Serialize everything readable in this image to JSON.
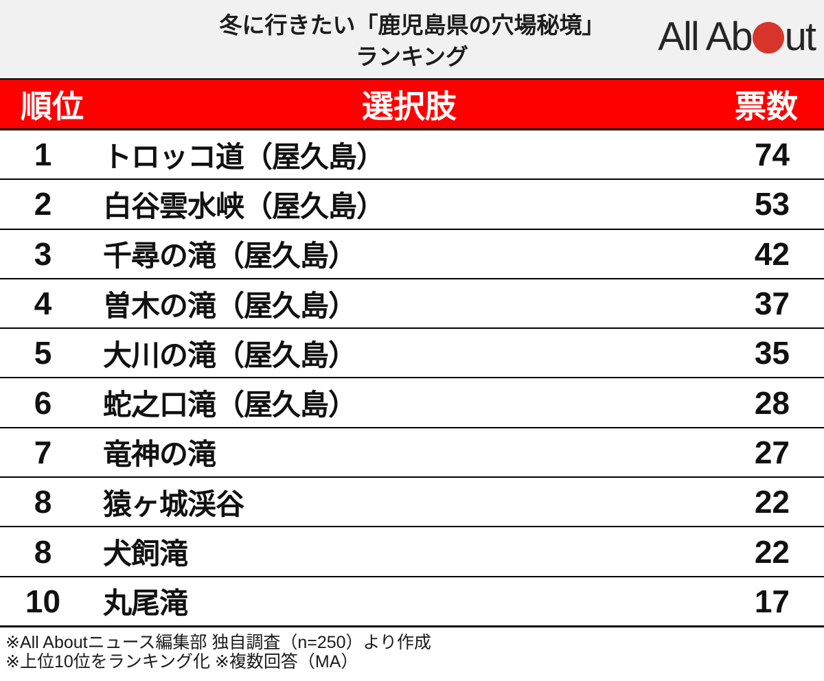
{
  "header": {
    "title_line1": "冬に行きたい「鹿児島県の穴場秘境」",
    "title_line2": "ランキング",
    "logo": {
      "name": "All About",
      "text_before_dot": "All Ab",
      "text_after_dot": "ut"
    }
  },
  "colors": {
    "header_bg": "#f1f1f1",
    "header_bar": "#fd0000",
    "logo_dot": "#d7352b",
    "divider": "#000000"
  },
  "table": {
    "columns": {
      "rank": "順位",
      "choice": "選択肢",
      "votes": "票数"
    },
    "rows": [
      {
        "rank": "1",
        "name": "トロッコ道（屋久島）",
        "votes": "74"
      },
      {
        "rank": "2",
        "name": "白谷雲水峡（屋久島）",
        "votes": "53"
      },
      {
        "rank": "3",
        "name": "千尋の滝（屋久島）",
        "votes": "42"
      },
      {
        "rank": "4",
        "name": "曽木の滝（屋久島）",
        "votes": "37"
      },
      {
        "rank": "5",
        "name": "大川の滝（屋久島）",
        "votes": "35"
      },
      {
        "rank": "6",
        "name": "蛇之口滝（屋久島）",
        "votes": "28"
      },
      {
        "rank": "7",
        "name": "竜神の滝",
        "votes": "27"
      },
      {
        "rank": "8",
        "name": "猿ヶ城渓谷",
        "votes": "22"
      },
      {
        "rank": "8",
        "name": "犬飼滝",
        "votes": "22"
      },
      {
        "rank": "10",
        "name": "丸尾滝",
        "votes": "17"
      }
    ]
  },
  "footer": {
    "note1": "※All Aboutニュース編集部 独自調査（n=250）より作成",
    "note2": "※上位10位をランキング化 ※複数回答（MA）"
  },
  "chart_data": {
    "type": "table",
    "title": "冬に行きたい「鹿児島県の穴場秘境」ランキング",
    "columns": [
      "順位",
      "選択肢",
      "票数"
    ],
    "rows": [
      [
        1,
        "トロッコ道（屋久島）",
        74
      ],
      [
        2,
        "白谷雲水峡（屋久島）",
        53
      ],
      [
        3,
        "千尋の滝（屋久島）",
        42
      ],
      [
        4,
        "曽木の滝（屋久島）",
        37
      ],
      [
        5,
        "大川の滝（屋久島）",
        35
      ],
      [
        6,
        "蛇之口滝（屋久島）",
        28
      ],
      [
        7,
        "竜神の滝",
        27
      ],
      [
        8,
        "猿ヶ城渓谷",
        22
      ],
      [
        8,
        "犬飼滝",
        22
      ],
      [
        10,
        "丸尾滝",
        17
      ]
    ],
    "notes": [
      "※All Aboutニュース編集部 独自調査（n=250）より作成",
      "※上位10位をランキング化 ※複数回答（MA）"
    ]
  }
}
